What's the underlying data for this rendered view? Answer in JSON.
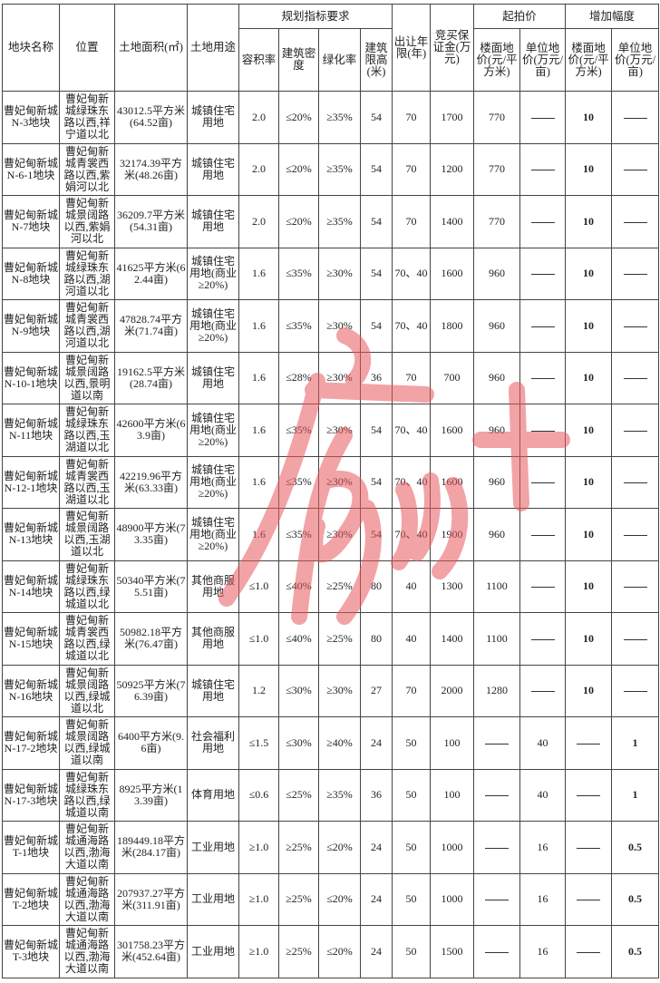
{
  "headers": {
    "name": "地块名称",
    "location": "位置",
    "area": "土地面积(㎡)",
    "use": "土地用途",
    "planning": "规划指标要求",
    "far": "容积率",
    "density": "建筑密度",
    "green": "绿化率",
    "height": "建筑限高(米)",
    "years": "出让年限(年)",
    "deposit": "竞买保证金(万元)",
    "start_price": "起拍价",
    "floor_price": "楼面地价(元/平方米)",
    "unit_price": "单位地价(万元/亩)",
    "increment": "增加幅度",
    "inc_floor": "楼面地价(元/平方米)",
    "inc_unit": "单位地价(万元/亩)"
  },
  "rows": [
    {
      "name": "曹妃甸新城N-3地块",
      "location": "曹妃甸新城绿珠东路以西,祥宁道以北",
      "area": "43012.5平方米(64.52亩)",
      "use": "城镇住宅用地",
      "far": "2.0",
      "density": "≤20%",
      "green": "≥35%",
      "height": "54",
      "years": "70",
      "deposit": "1700",
      "floor_price": "770",
      "unit_price": "—",
      "inc_floor": "10",
      "inc_unit": "—"
    },
    {
      "name": "曹妃甸新城N-6-1地块",
      "location": "曹妃甸新城青裳西路以西,紫娟河以北",
      "area": "32174.39平方米(48.26亩)",
      "use": "城镇住宅用地",
      "far": "2.0",
      "density": "≤20%",
      "green": "≥35%",
      "height": "54",
      "years": "70",
      "deposit": "1200",
      "floor_price": "770",
      "unit_price": "—",
      "inc_floor": "10",
      "inc_unit": "—"
    },
    {
      "name": "曹妃甸新城N-7地块",
      "location": "曹妃甸新城景阔路以西,紫娟河以北",
      "area": "36209.7平方米(54.31亩)",
      "use": "城镇住宅用地",
      "far": "2.0",
      "density": "≤20%",
      "green": "≥35%",
      "height": "54",
      "years": "70",
      "deposit": "1400",
      "floor_price": "770",
      "unit_price": "—",
      "inc_floor": "10",
      "inc_unit": "—"
    },
    {
      "name": "曹妃甸新城N-8地块",
      "location": "曹妃甸新城绿珠东路以西,湖河道以北",
      "area": "41625平方米(62.44亩)",
      "use": "城镇住宅用地(商业≥20%)",
      "far": "1.6",
      "density": "≤35%",
      "green": "≥30%",
      "height": "54",
      "years": "70、40",
      "deposit": "1600",
      "floor_price": "960",
      "unit_price": "—",
      "inc_floor": "10",
      "inc_unit": "—"
    },
    {
      "name": "曹妃甸新城N-9地块",
      "location": "曹妃甸新城青裳西路以西,湖河道以北",
      "area": "47828.74平方米(71.74亩)",
      "use": "城镇住宅用地(商业≥20%)",
      "far": "1.6",
      "density": "≤35%",
      "green": "≥30%",
      "height": "54",
      "years": "70、40",
      "deposit": "1800",
      "floor_price": "960",
      "unit_price": "—",
      "inc_floor": "10",
      "inc_unit": "—"
    },
    {
      "name": "曹妃甸新城N-10-1地块",
      "location": "曹妃甸新城景阔路以西,景明道以南",
      "area": "19162.5平方米(28.74亩)",
      "use": "城镇住宅用地",
      "far": "1.6",
      "density": "≤28%",
      "green": "≥30%",
      "height": "36",
      "years": "70",
      "deposit": "700",
      "floor_price": "960",
      "unit_price": "—",
      "inc_floor": "10",
      "inc_unit": "—"
    },
    {
      "name": "曹妃甸新城N-11地块",
      "location": "曹妃甸新城绿珠东路以西,玉湖道以北",
      "area": "42600平方米(63.9亩)",
      "use": "城镇住宅用地(商业≥20%)",
      "far": "1.6",
      "density": "≤35%",
      "green": "≥30%",
      "height": "54",
      "years": "70、40",
      "deposit": "1600",
      "floor_price": "960",
      "unit_price": "—",
      "inc_floor": "10",
      "inc_unit": "—"
    },
    {
      "name": "曹妃甸新城N-12-1地块",
      "location": "曹妃甸新城青裳西路以西,玉湖道以北",
      "area": "42219.96平方米(63.33亩)",
      "use": "城镇住宅用地(商业≥20%)",
      "far": "1.6",
      "density": "≤35%",
      "green": "≥30%",
      "height": "54",
      "years": "70、40",
      "deposit": "1600",
      "floor_price": "960",
      "unit_price": "—",
      "inc_floor": "10",
      "inc_unit": "—"
    },
    {
      "name": "曹妃甸新城N-13地块",
      "location": "曹妃甸新城景阔路以西,玉湖道以北",
      "area": "48900平方米(73.35亩)",
      "use": "城镇住宅用地(商业≥20%)",
      "far": "1.6",
      "density": "≤35%",
      "green": "≥30%",
      "height": "54",
      "years": "70、40",
      "deposit": "1900",
      "floor_price": "960",
      "unit_price": "—",
      "inc_floor": "10",
      "inc_unit": "—"
    },
    {
      "name": "曹妃甸新城N-14地块",
      "location": "曹妃甸新城绿珠东路以西,绿城道以北",
      "area": "50340平方米(75.51亩)",
      "use": "其他商服用地",
      "far": "≤1.0",
      "density": "≤40%",
      "green": "≥25%",
      "height": "80",
      "years": "40",
      "deposit": "1300",
      "floor_price": "1100",
      "unit_price": "—",
      "inc_floor": "10",
      "inc_unit": "—"
    },
    {
      "name": "曹妃甸新城N-15地块",
      "location": "曹妃甸新城青裳西路以西,绿城道以北",
      "area": "50982.18平方米(76.47亩)",
      "use": "其他商服用地",
      "far": "≤1.0",
      "density": "≤40%",
      "green": "≥25%",
      "height": "80",
      "years": "40",
      "deposit": "1400",
      "floor_price": "1100",
      "unit_price": "—",
      "inc_floor": "10",
      "inc_unit": "—"
    },
    {
      "name": "曹妃甸新城N-16地块",
      "location": "曹妃甸新城景阔路以西,绿城道以北",
      "area": "50925平方米(76.39亩)",
      "use": "城镇住宅用地",
      "far": "1.2",
      "density": "≤30%",
      "green": "≥30%",
      "height": "27",
      "years": "70",
      "deposit": "2000",
      "floor_price": "1280",
      "unit_price": "—",
      "inc_floor": "10",
      "inc_unit": "—"
    },
    {
      "name": "曹妃甸新城N-17-2地块",
      "location": "曹妃甸新城景阔路以西,绿城道以南",
      "area": "6400平方米(9.6亩)",
      "use": "社会福利用地",
      "far": "≤1.5",
      "density": "≤30%",
      "green": "≥40%",
      "height": "24",
      "years": "50",
      "deposit": "100",
      "floor_price": "—",
      "unit_price": "40",
      "inc_floor": "—",
      "inc_unit": "1"
    },
    {
      "name": "曹妃甸新城N-17-3地块",
      "location": "曹妃甸新城绿珠东路以西,绿城道以南",
      "area": "8925平方米(13.39亩)",
      "use": "体育用地",
      "far": "≤0.6",
      "density": "≤25%",
      "green": "≥35%",
      "height": "36",
      "years": "50",
      "deposit": "100",
      "floor_price": "—",
      "unit_price": "40",
      "inc_floor": "—",
      "inc_unit": "1"
    },
    {
      "name": "曹妃甸新城T-1地块",
      "location": "曹妃甸新城通海路以西,渤海大道以南",
      "area": "189449.18平方米(284.17亩)",
      "use": "工业用地",
      "far": "≥1.0",
      "density": "≥25%",
      "green": "≤20%",
      "height": "24",
      "years": "50",
      "deposit": "1000",
      "floor_price": "—",
      "unit_price": "16",
      "inc_floor": "—",
      "inc_unit": "0.5"
    },
    {
      "name": "曹妃甸新城T-2地块",
      "location": "曹妃甸新城通海路以西,渤海大道以南",
      "area": "207937.27平方米(311.91亩)",
      "use": "工业用地",
      "far": "≥1.0",
      "density": "≥25%",
      "green": "≤20%",
      "height": "24",
      "years": "50",
      "deposit": "1000",
      "floor_price": "—",
      "unit_price": "16",
      "inc_floor": "—",
      "inc_unit": "0.5"
    },
    {
      "name": "曹妃甸新城T-3地块",
      "location": "曹妃甸新城通海路以西,渤海大道以南",
      "area": "301758.23平方米(452.64亩)",
      "use": "工业用地",
      "far": "≥1.0",
      "density": "≥25%",
      "green": "≤20%",
      "height": "24",
      "years": "50",
      "deposit": "1500",
      "floor_price": "—",
      "unit_price": "16",
      "inc_floor": "—",
      "inc_unit": "0.5"
    }
  ],
  "watermark": {
    "text": "唐山+",
    "color": "#e8585e"
  }
}
